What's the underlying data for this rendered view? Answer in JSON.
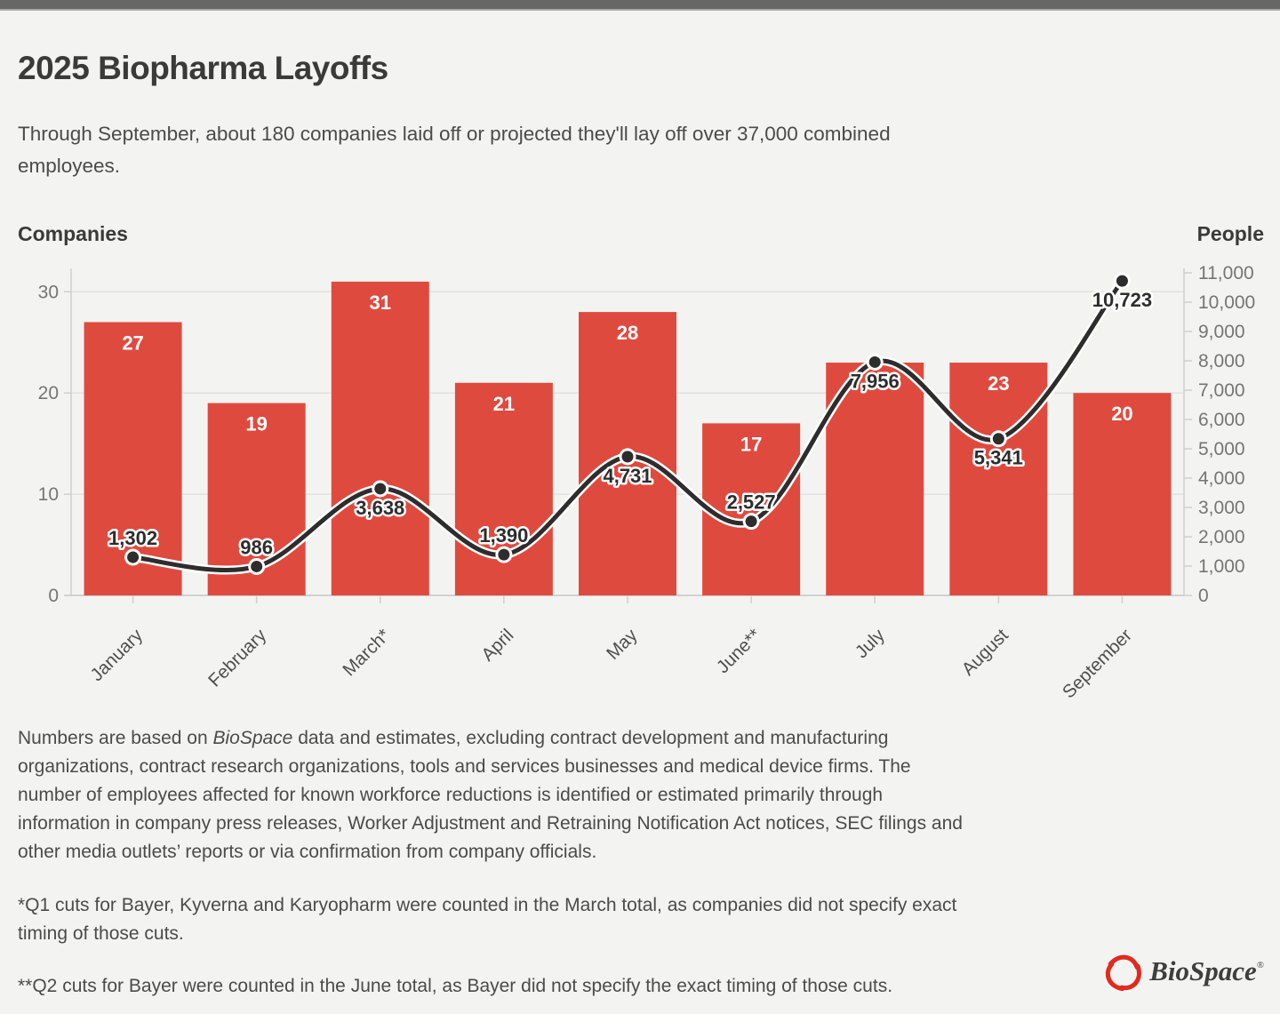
{
  "header": {
    "title": "2025 Biopharma Layoffs",
    "subtitle_line1": "Through September, about 180 companies laid off or projected they'll lay off over 37,000 combined",
    "subtitle_line2": "employees."
  },
  "axes": {
    "left_title": "Companies",
    "right_title": "People"
  },
  "colors": {
    "background": "#f3f3f1",
    "topbar": "#676766",
    "bar": "#df4a3f",
    "line": "#2d2d2d",
    "halo": "#ffffff",
    "grid": "#e2e2e0",
    "axis_line": "#cfcfcd",
    "tick_text": "#757575",
    "month_text": "#4f4f4f",
    "bar_label": "#ffffff",
    "line_label": "#2d2d2d",
    "logo_red": "#e02b1d"
  },
  "chart_data": {
    "type": "combo-bar-line",
    "title": "2025 Biopharma Layoffs",
    "categories": [
      "January",
      "February",
      "March*",
      "April",
      "May",
      "June**",
      "July",
      "August",
      "September"
    ],
    "category_ids": [
      "january",
      "february",
      "march",
      "april",
      "may",
      "june",
      "july",
      "august",
      "september"
    ],
    "series": [
      {
        "name": "Companies",
        "type": "bar",
        "axis": "left",
        "values": [
          27,
          19,
          31,
          21,
          28,
          17,
          23,
          23,
          20
        ],
        "value_labels": [
          "27",
          "19",
          "31",
          "21",
          "28",
          "17",
          "23",
          "23",
          "20"
        ],
        "label_visible": [
          true,
          true,
          true,
          true,
          true,
          true,
          false,
          true,
          true
        ]
      },
      {
        "name": "People",
        "type": "line",
        "axis": "right",
        "values": [
          1302,
          986,
          3638,
          1390,
          4731,
          2527,
          7956,
          5341,
          10723
        ],
        "value_labels": [
          "1,302",
          "986",
          "3,638",
          "1,390",
          "4,731",
          "2,527",
          "7,956",
          "5,341",
          "10,723"
        ],
        "label_side": [
          "above",
          "above",
          "below",
          "above",
          "below",
          "above",
          "below",
          "below",
          "below"
        ]
      }
    ],
    "left_axis": {
      "title": "Companies",
      "tick_values": [
        0,
        10,
        20,
        30
      ],
      "ticks": [
        "0",
        "10",
        "20",
        "30"
      ],
      "range": [
        0,
        32
      ]
    },
    "right_axis": {
      "title": "People",
      "tick_values": [
        0,
        1000,
        2000,
        3000,
        4000,
        5000,
        6000,
        7000,
        8000,
        9000,
        10000,
        11000
      ],
      "ticks": [
        "0",
        "1,000",
        "2,000",
        "3,000",
        "4,000",
        "5,000",
        "6,000",
        "7,000",
        "8,000",
        "9,000",
        "10,000",
        "11,000"
      ],
      "range": [
        0,
        11000
      ]
    },
    "grid": "horizontal",
    "legend": "none"
  },
  "notes": {
    "line1_pre": "Numbers are based on ",
    "line1_em": "BioSpace",
    "line1_post": " data and estimates, excluding contract development and manufacturing",
    "line2": "organizations, contract research organizations, tools and services businesses and medical device firms. The",
    "line3": "number of employees affected for known workforce reductions is identified or estimated primarily through",
    "line4": "information in company press releases, Worker Adjustment and Retraining Notification Act notices, SEC filings and",
    "line5": "other media outlets’ reports or via confirmation from company officials.",
    "footnote1_line1": "*Q1 cuts for Bayer, Kyverna and Karyopharm were counted in the March total, as companies did not specify exact",
    "footnote1_line2": "timing of those cuts.",
    "footnote2": "**Q2 cuts for Bayer were counted in the June total, as Bayer did not specify the exact timing of those cuts."
  },
  "logo": {
    "text": "BioSpace",
    "mark": "®"
  }
}
